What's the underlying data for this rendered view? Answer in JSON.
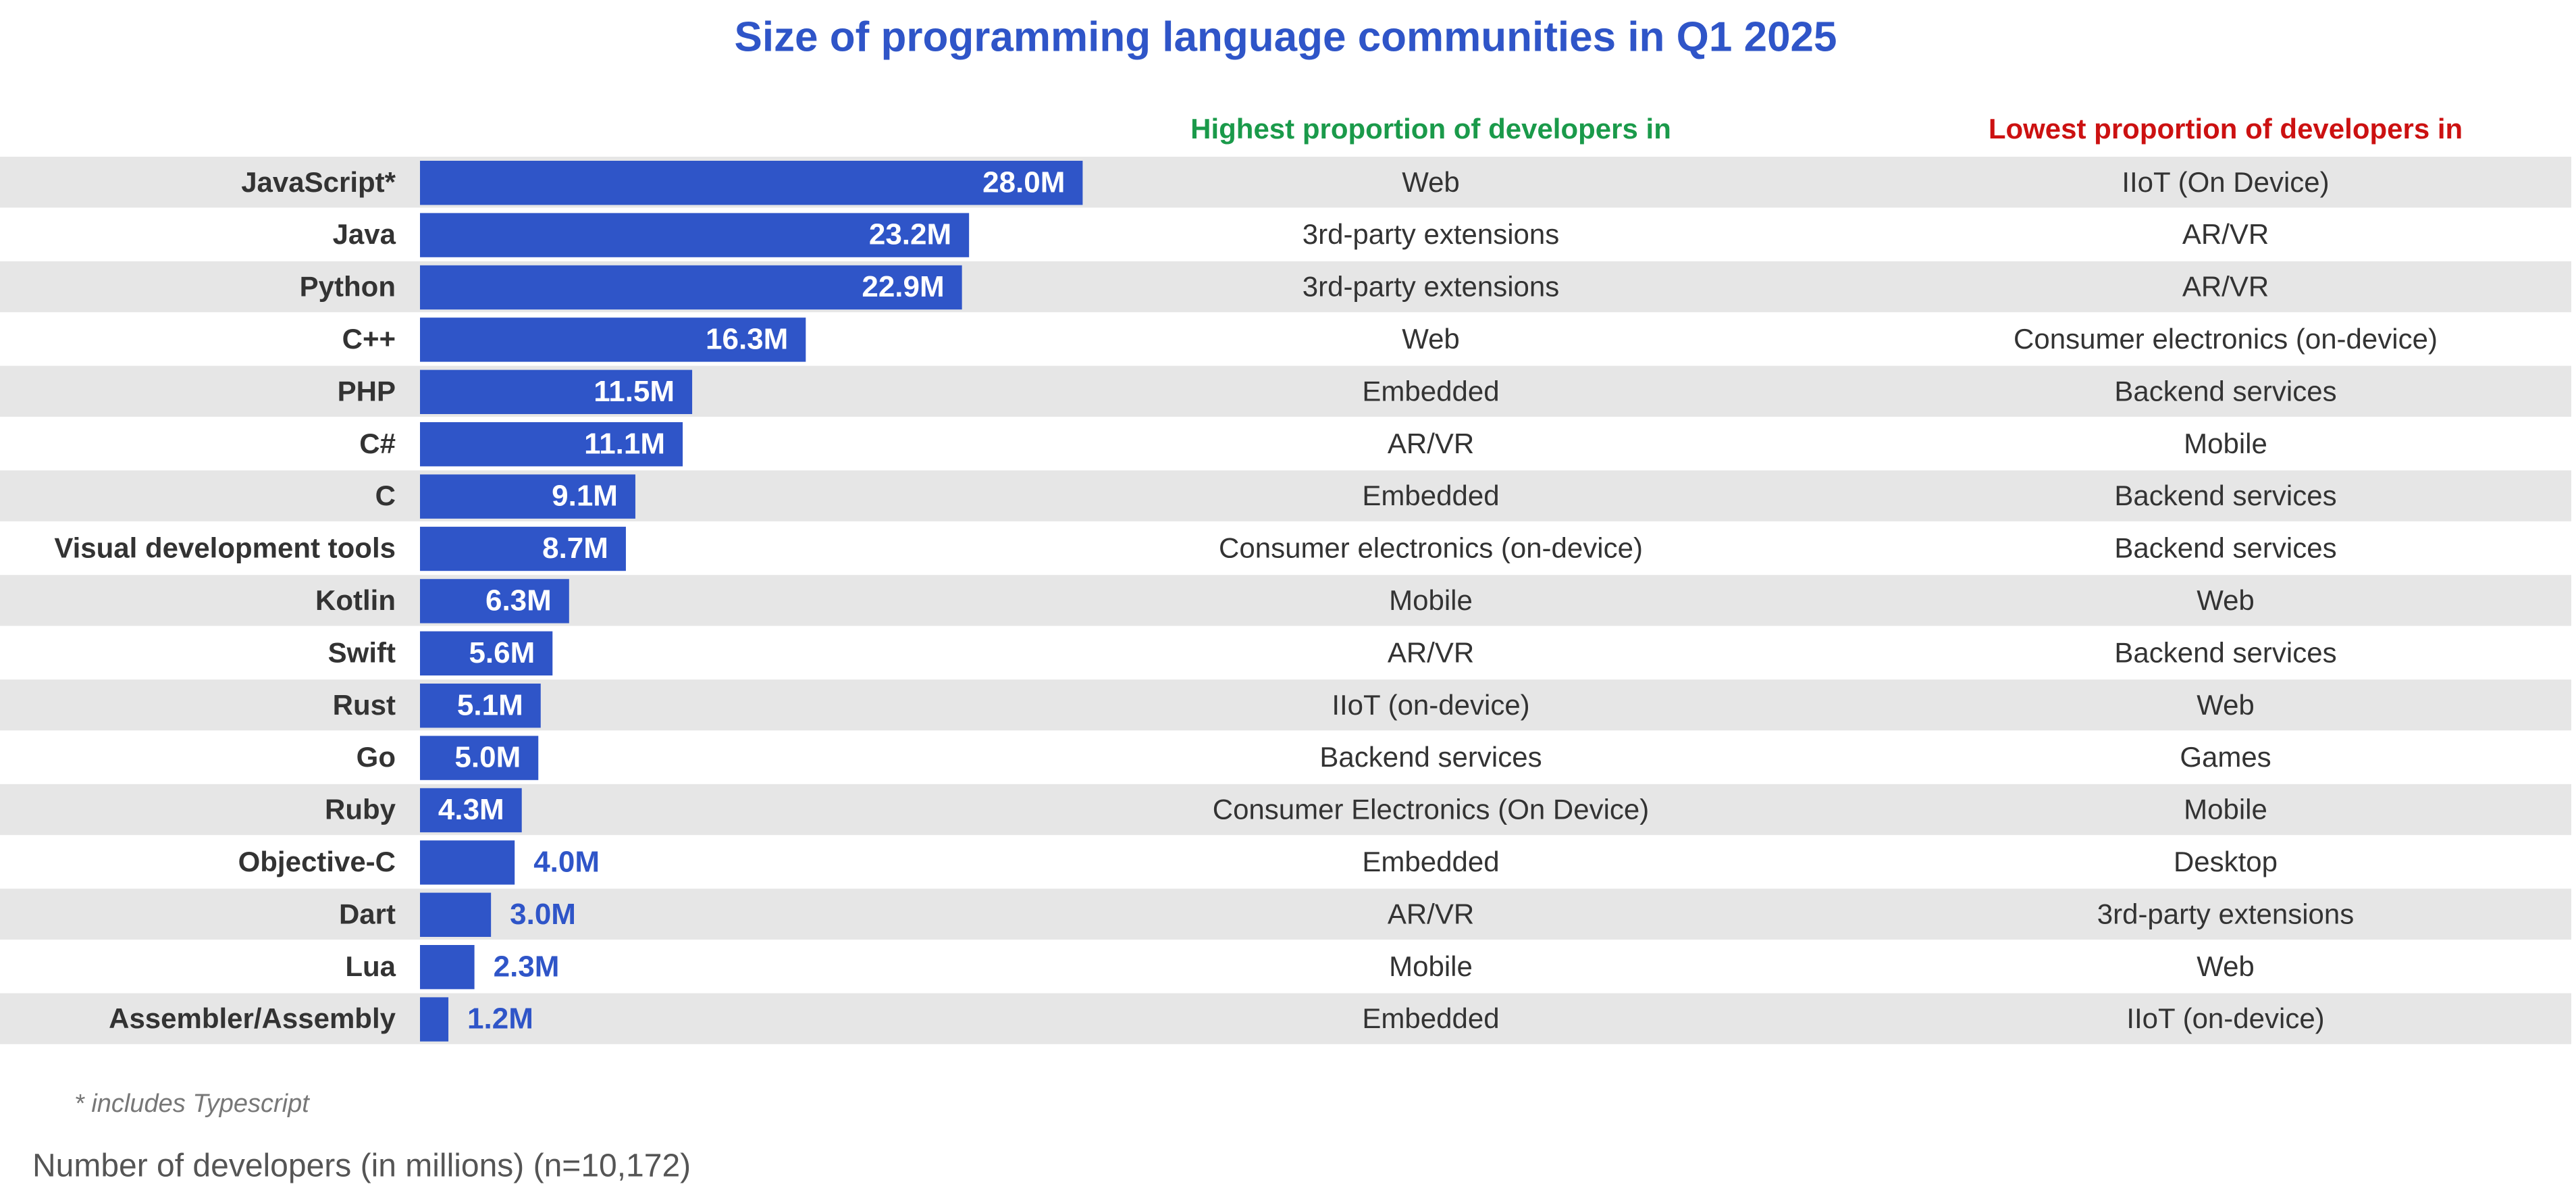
{
  "chart_data": {
    "type": "bar",
    "orientation": "horizontal",
    "title": "Size of programming language communities in Q1 2025",
    "categories": [
      "JavaScript*",
      "Java",
      "Python",
      "C++",
      "PHP",
      "C#",
      "C",
      "Visual development tools",
      "Kotlin",
      "Swift",
      "Rust",
      "Go",
      "Ruby",
      "Objective-C",
      "Dart",
      "Lua",
      "Assembler/Assembly"
    ],
    "values": [
      28.0,
      23.2,
      22.9,
      16.3,
      11.5,
      11.1,
      9.1,
      8.7,
      6.3,
      5.6,
      5.1,
      5.0,
      4.3,
      4.0,
      3.0,
      2.3,
      1.2
    ],
    "value_labels": [
      "28.0M",
      "23.2M",
      "22.9M",
      "16.3M",
      "11.5M",
      "11.1M",
      "9.1M",
      "8.7M",
      "6.3M",
      "5.6M",
      "5.1M",
      "5.0M",
      "4.3M",
      "4.0M",
      "3.0M",
      "2.3M",
      "1.2M"
    ],
    "color": "#2f55c8",
    "highest_header": "Highest proportion of developers in",
    "highest_color": "#1a9a4a",
    "highest": [
      "Web",
      "3rd-party extensions",
      "3rd-party extensions",
      "Web",
      "Embedded",
      "AR/VR",
      "Embedded",
      "Consumer electronics (on-device)",
      "Mobile",
      "AR/VR",
      "IIoT (on-device)",
      "Backend services",
      "Consumer Electronics (On Device)",
      "Embedded",
      "AR/VR",
      "Mobile",
      "Embedded"
    ],
    "lowest_header": "Lowest proportion of developers in",
    "lowest_color": "#cc1111",
    "lowest": [
      "IIoT (On Device)",
      "AR/VR",
      "AR/VR",
      "Consumer electronics (on-device)",
      "Backend services",
      "Mobile",
      "Backend services",
      "Backend services",
      "Web",
      "Backend services",
      "Web",
      "Games",
      "Mobile",
      "Desktop",
      "3rd-party extensions",
      "Web",
      "IIoT (on-device)"
    ],
    "footnote": "* includes Typescript",
    "xlabel": "Number of developers (in millions) (n=10,172)"
  }
}
